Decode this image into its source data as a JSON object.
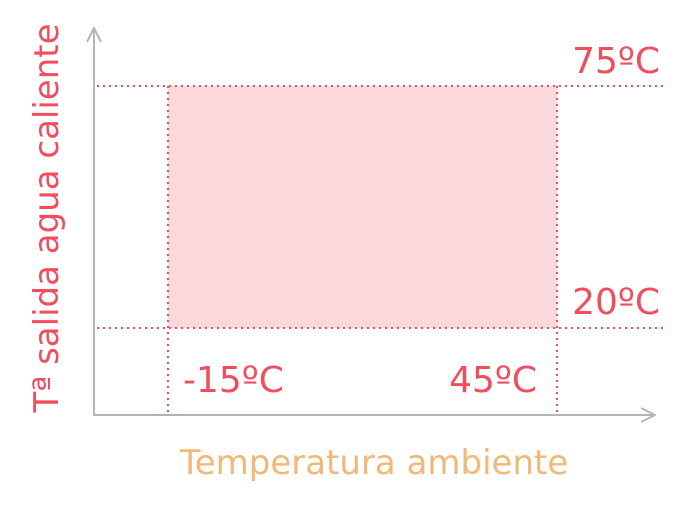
{
  "chart_data": {
    "type": "area",
    "title": "",
    "xlabel": "Temperatura ambiente",
    "ylabel": "Tª salida agua caliente",
    "region": {
      "x": [
        -15,
        45
      ],
      "y": [
        20,
        75
      ]
    },
    "x_tick_labels": [
      "-15ºC",
      "45ºC"
    ],
    "y_tick_labels": [
      "20ºC",
      "75ºC"
    ],
    "grid": false,
    "axis_arrows": true,
    "colors": {
      "region_fill": "#fdd9dc",
      "guide_lines": "#f04e5e",
      "tick_labels": "#f04e5e",
      "ylabel": "#f04e5e",
      "xlabel": "#f2b877",
      "axes": "#b5b5b5"
    }
  }
}
